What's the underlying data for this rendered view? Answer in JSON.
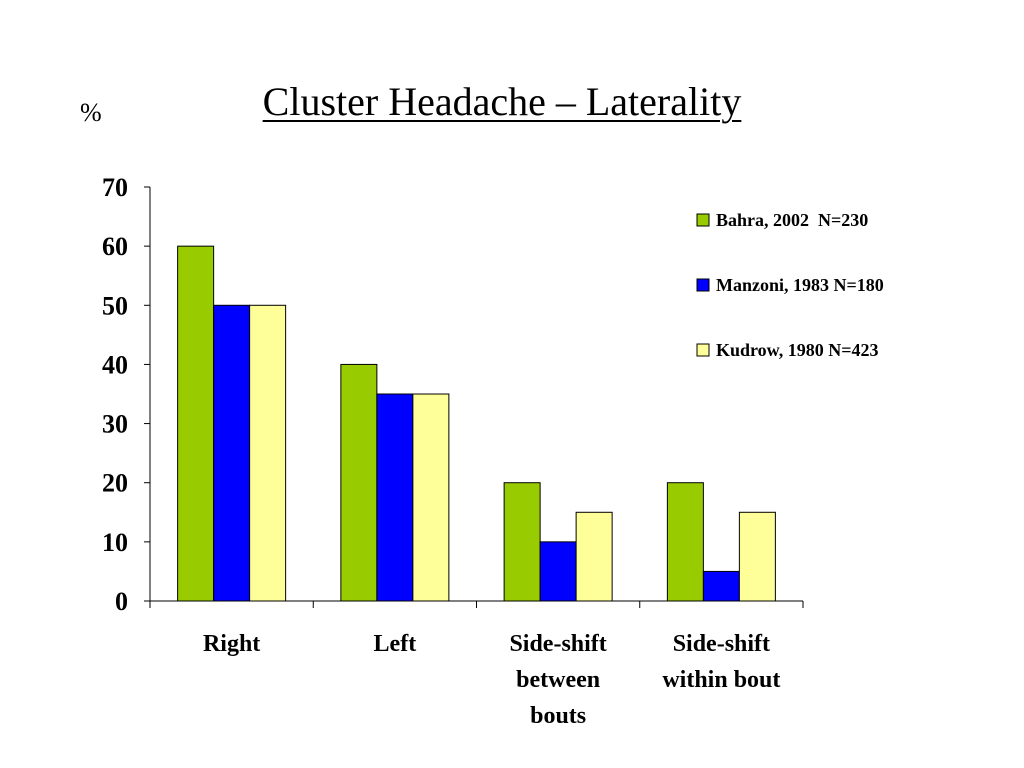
{
  "chart_data": {
    "type": "bar",
    "title": "Cluster Headache – Laterality",
    "ylabel": "%",
    "xlabel": "",
    "ylim": [
      0,
      70
    ],
    "yticks": [
      0,
      10,
      20,
      30,
      40,
      50,
      60,
      70
    ],
    "categories": [
      [
        "Right"
      ],
      [
        "Left"
      ],
      [
        "Side-shift",
        "between",
        "bouts"
      ],
      [
        "Side-shift",
        "within bout"
      ]
    ],
    "series": [
      {
        "name": "Bahra, 2002  N=230",
        "color": "#99cc00",
        "values": [
          60,
          40,
          20,
          20
        ]
      },
      {
        "name": "Manzoni, 1983 N=180",
        "color": "#0000ff",
        "values": [
          50,
          35,
          10,
          5
        ]
      },
      {
        "name": "Kudrow, 1980 N=423",
        "color": "#ffff99",
        "values": [
          50,
          35,
          15,
          15
        ]
      }
    ],
    "grid": false,
    "legend_position": "top-right"
  }
}
